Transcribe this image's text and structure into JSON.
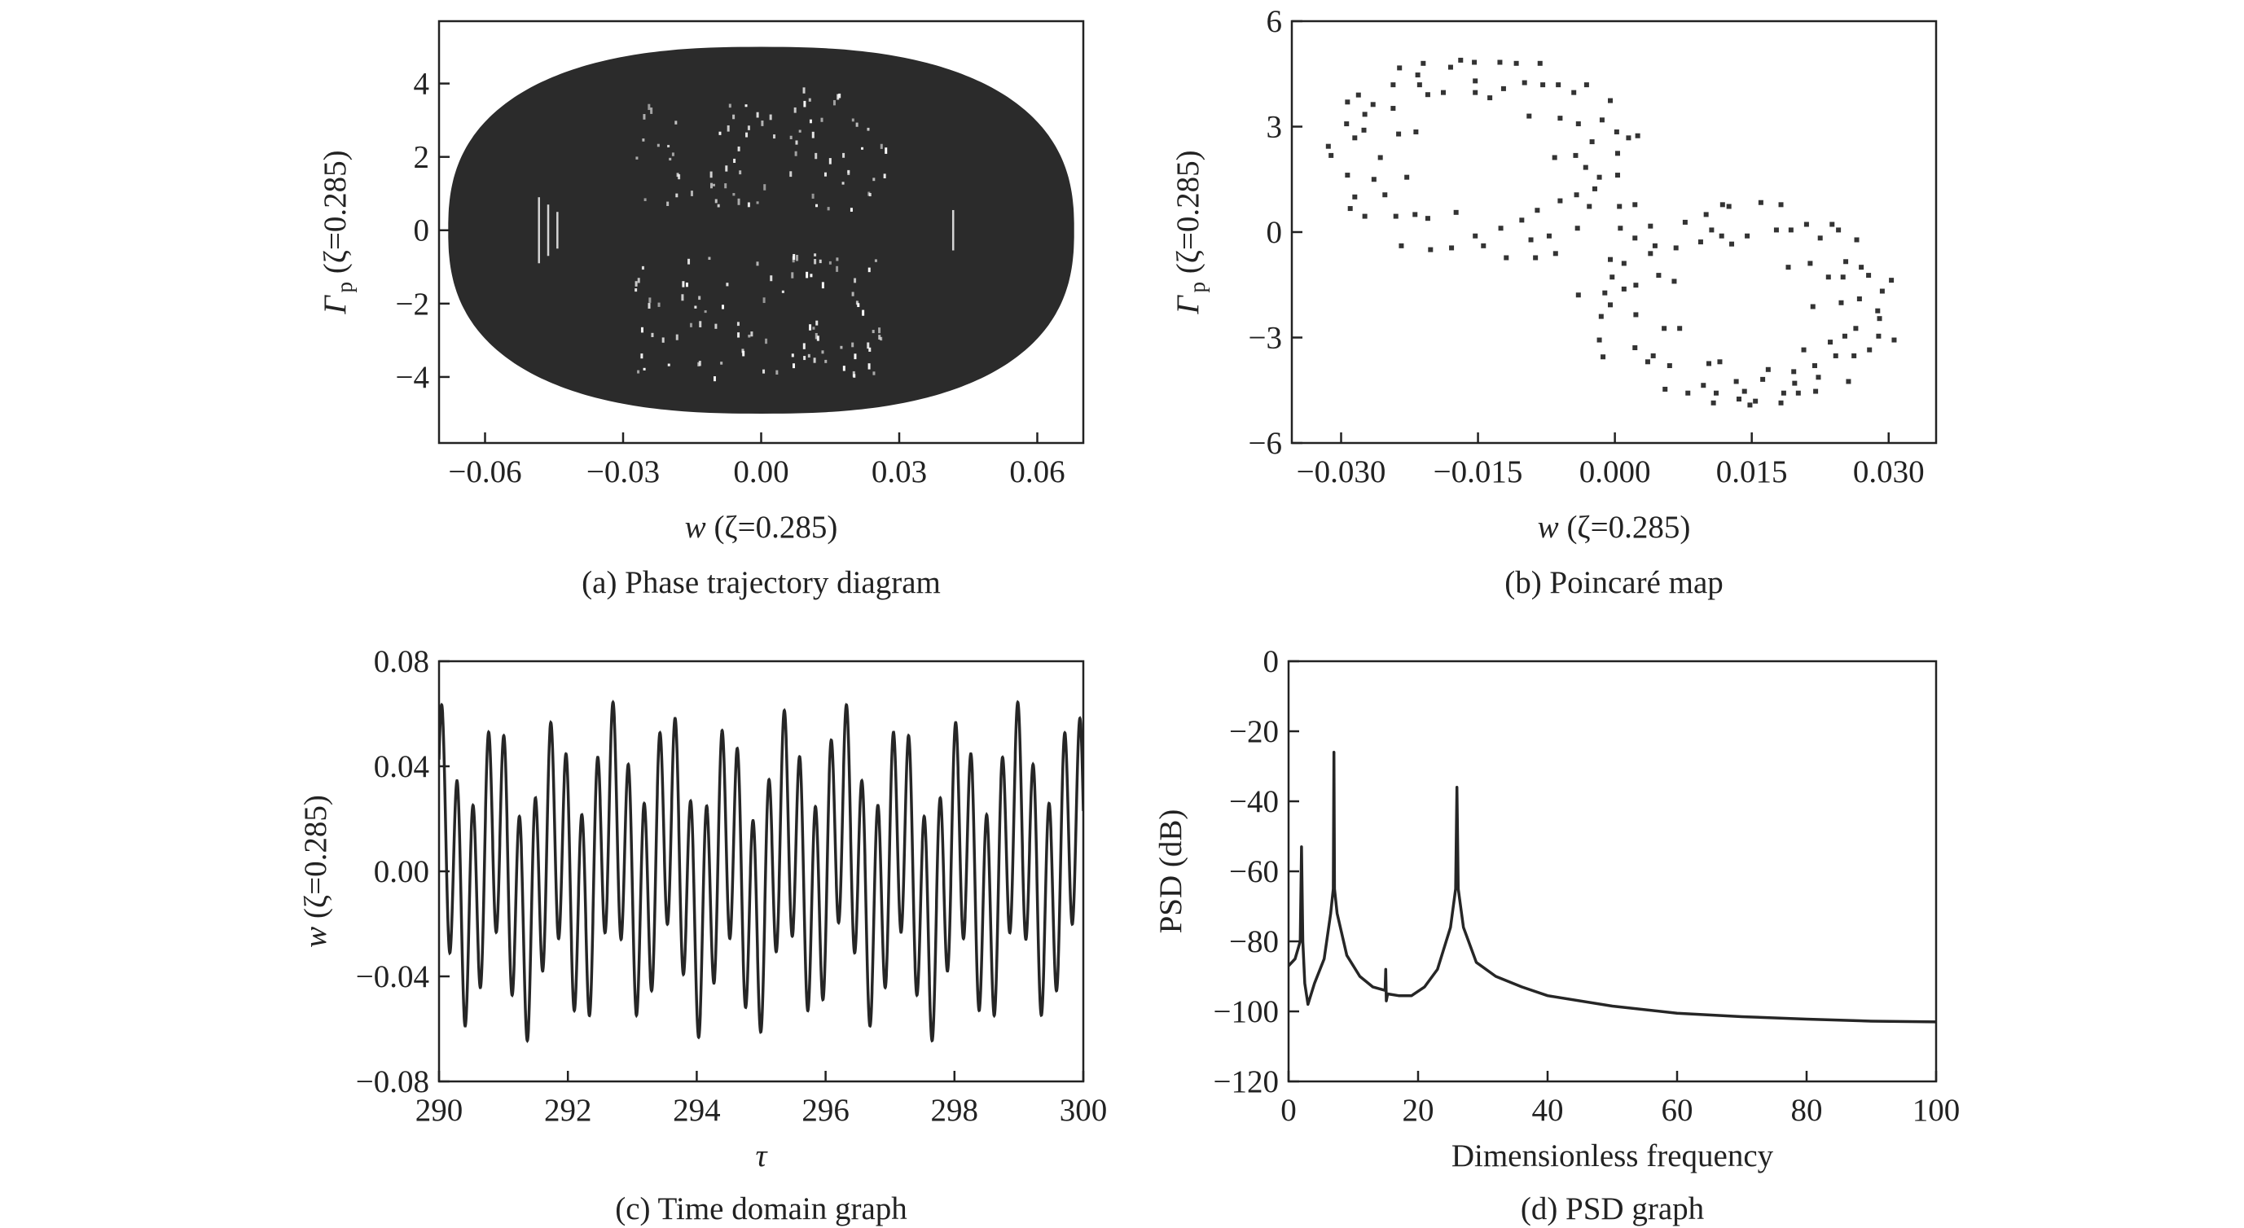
{
  "chart_data": [
    {
      "id": "a",
      "type": "area",
      "caption": "(a) Phase trajectory diagram",
      "xlabel": {
        "sym": "w",
        "rest": " (ζ=0.285)"
      },
      "ylabel": {
        "sym": "Γ",
        "sub": "p",
        "rest": " (ζ=0.285)"
      },
      "xlim": [
        -0.07,
        0.07
      ],
      "ylim": [
        -5.8,
        5.7
      ],
      "xticks": [
        -0.06,
        -0.03,
        0.0,
        0.03,
        0.06
      ],
      "xtick_labels": [
        "−0.06",
        "−0.03",
        "0.00",
        "0.03",
        "0.06"
      ],
      "yticks": [
        4,
        2,
        0,
        -2,
        -4
      ],
      "ytick_labels": [
        "4",
        "2",
        "0",
        "−2",
        "−4"
      ],
      "trajectory_envelope": {
        "w_amplitude": 0.068,
        "gamma_amplitude": 5.0
      },
      "fill_color": "#2b2b2b"
    },
    {
      "id": "b",
      "type": "scatter",
      "caption": "(b) Poincaré map",
      "xlabel": {
        "sym": "w",
        "rest": " (ζ=0.285)"
      },
      "ylabel": {
        "sym": "Γ",
        "sub": "p",
        "rest": " (ζ=0.285)"
      },
      "xlim": [
        -0.0354,
        0.0352
      ],
      "ylim": [
        -6,
        6
      ],
      "xticks": [
        -0.03,
        -0.015,
        0.0,
        0.015,
        0.03
      ],
      "xtick_labels": [
        "−0.030",
        "−0.015",
        "0.000",
        "0.015",
        "0.030"
      ],
      "yticks": [
        6,
        3,
        0,
        -3,
        -6
      ],
      "ytick_labels": [
        "6",
        "3",
        "0",
        "−3",
        "−6"
      ],
      "points": [
        [
          -0.0314,
          2.44
        ],
        [
          -0.0311,
          2.18
        ],
        [
          -0.0293,
          3.7
        ],
        [
          -0.0294,
          3.08
        ],
        [
          -0.0281,
          3.9
        ],
        [
          -0.0285,
          2.68
        ],
        [
          -0.0293,
          1.62
        ],
        [
          -0.029,
          0.67
        ],
        [
          -0.0285,
          1.0
        ],
        [
          -0.0274,
          3.35
        ],
        [
          -0.0275,
          2.9
        ],
        [
          -0.0265,
          3.63
        ],
        [
          -0.0264,
          1.5
        ],
        [
          -0.0274,
          0.45
        ],
        [
          -0.0257,
          2.12
        ],
        [
          -0.0252,
          1.06
        ],
        [
          -0.0243,
          4.19
        ],
        [
          -0.0243,
          3.52
        ],
        [
          -0.0236,
          4.67
        ],
        [
          -0.0237,
          2.79
        ],
        [
          -0.024,
          0.45
        ],
        [
          -0.0234,
          -0.39
        ],
        [
          -0.0228,
          1.56
        ],
        [
          -0.0218,
          2.85
        ],
        [
          -0.0216,
          4.47
        ],
        [
          -0.0214,
          4.19
        ],
        [
          -0.021,
          4.8
        ],
        [
          -0.0205,
          3.91
        ],
        [
          -0.0219,
          0.5
        ],
        [
          -0.0205,
          0.39
        ],
        [
          -0.0202,
          -0.5
        ],
        [
          -0.0188,
          3.97
        ],
        [
          -0.018,
          4.69
        ],
        [
          -0.0179,
          -0.45
        ],
        [
          -0.0174,
          0.56
        ],
        [
          -0.0169,
          4.89
        ],
        [
          -0.0154,
          4.83
        ],
        [
          -0.0153,
          3.97
        ],
        [
          -0.0153,
          4.3
        ],
        [
          -0.0144,
          -0.39
        ],
        [
          -0.0153,
          -0.11
        ],
        [
          -0.0137,
          3.82
        ],
        [
          -0.0126,
          4.83
        ],
        [
          -0.0125,
          0.11
        ],
        [
          -0.0122,
          4.08
        ],
        [
          -0.0119,
          -0.73
        ],
        [
          -0.0108,
          4.8
        ],
        [
          -0.0102,
          0.34
        ],
        [
          -0.0099,
          4.25
        ],
        [
          -0.0094,
          3.3
        ],
        [
          -0.0092,
          -0.22
        ],
        [
          -0.0087,
          -0.73
        ],
        [
          -0.0085,
          0.62
        ],
        [
          -0.0082,
          4.8
        ],
        [
          -0.0079,
          4.19
        ],
        [
          -0.0072,
          -0.11
        ],
        [
          -0.0066,
          2.12
        ],
        [
          -0.0065,
          -0.61
        ],
        [
          -0.0062,
          4.19
        ],
        [
          -0.006,
          3.24
        ],
        [
          -0.006,
          0.89
        ],
        [
          -0.0045,
          3.97
        ],
        [
          -0.0043,
          2.18
        ],
        [
          -0.0042,
          1.06
        ],
        [
          -0.0041,
          0.11
        ],
        [
          -0.004,
          3.08
        ],
        [
          -0.0032,
          1.84
        ],
        [
          -0.0031,
          4.19
        ],
        [
          -0.0028,
          0.73
        ],
        [
          -0.0025,
          2.57
        ],
        [
          -0.0022,
          1.23
        ],
        [
          -0.0017,
          1.56
        ],
        [
          -0.0014,
          3.19
        ],
        [
          -0.0005,
          3.74
        ],
        [
          0.0002,
          2.85
        ],
        [
          0.0003,
          2.24
        ],
        [
          0.0003,
          1.62
        ],
        [
          0.0005,
          0.73
        ],
        [
          0.0006,
          0.11
        ],
        [
          0.0015,
          2.68
        ],
        [
          0.0022,
          0.78
        ],
        [
          0.0025,
          2.74
        ],
        [
          -0.004,
          -1.79
        ],
        [
          -0.0005,
          -0.78
        ],
        [
          -0.0011,
          -1.73
        ],
        [
          -0.0005,
          -2.07
        ],
        [
          -0.0015,
          -2.4
        ],
        [
          -0.0017,
          -3.07
        ],
        [
          -0.0013,
          -3.55
        ],
        [
          -0.0003,
          -1.28
        ],
        [
          0.001,
          -1.62
        ],
        [
          0.001,
          -0.89
        ],
        [
          0.0022,
          -0.17
        ],
        [
          0.0023,
          -2.35
        ],
        [
          0.0022,
          -3.29
        ],
        [
          0.0023,
          -1.51
        ],
        [
          0.0039,
          0.17
        ],
        [
          0.0039,
          -0.61
        ],
        [
          0.0044,
          -0.39
        ],
        [
          0.0036,
          -3.69
        ],
        [
          0.0042,
          -3.52
        ],
        [
          0.0048,
          -1.23
        ],
        [
          0.0054,
          -2.74
        ],
        [
          0.0055,
          -4.47
        ],
        [
          0.006,
          -3.8
        ],
        [
          0.0065,
          -1.4
        ],
        [
          0.0067,
          -0.45
        ],
        [
          0.0071,
          -2.74
        ],
        [
          0.0077,
          0.28
        ],
        [
          0.008,
          -4.58
        ],
        [
          0.0094,
          -0.28
        ],
        [
          0.0097,
          -4.36
        ],
        [
          0.01,
          0.5
        ],
        [
          0.0103,
          -3.74
        ],
        [
          0.0106,
          0.06
        ],
        [
          0.0108,
          -4.86
        ],
        [
          0.0111,
          -4.58
        ],
        [
          0.0115,
          -3.69
        ],
        [
          0.0117,
          -0.11
        ],
        [
          0.0118,
          0.78
        ],
        [
          0.0125,
          0.73
        ],
        [
          0.0128,
          -0.34
        ],
        [
          0.0133,
          -4.25
        ],
        [
          0.0136,
          -4.75
        ],
        [
          0.0142,
          -4.53
        ],
        [
          0.0145,
          -0.11
        ],
        [
          0.0148,
          -4.92
        ],
        [
          0.0154,
          -4.81
        ],
        [
          0.016,
          0.84
        ],
        [
          0.0162,
          -4.19
        ],
        [
          0.0168,
          -3.91
        ],
        [
          0.0177,
          0.06
        ],
        [
          0.0182,
          0.78
        ],
        [
          0.0182,
          -4.86
        ],
        [
          0.0185,
          -4.58
        ],
        [
          0.019,
          -1.0
        ],
        [
          0.0193,
          0.06
        ],
        [
          0.0196,
          -3.97
        ],
        [
          0.0197,
          -4.3
        ],
        [
          0.0201,
          -4.58
        ],
        [
          0.021,
          0.22
        ],
        [
          0.0207,
          -3.35
        ],
        [
          0.0214,
          -0.89
        ],
        [
          0.0217,
          -2.12
        ],
        [
          0.0219,
          -3.8
        ],
        [
          0.022,
          -4.53
        ],
        [
          0.0223,
          -4.13
        ],
        [
          0.0225,
          -0.17
        ],
        [
          0.0234,
          -1.28
        ],
        [
          0.0236,
          -3.13
        ],
        [
          0.0238,
          0.22
        ],
        [
          0.0242,
          -3.52
        ],
        [
          0.0245,
          0.06
        ],
        [
          0.0248,
          -2.01
        ],
        [
          0.025,
          -1.28
        ],
        [
          0.0252,
          -2.96
        ],
        [
          0.0253,
          -0.84
        ],
        [
          0.0256,
          -4.25
        ],
        [
          0.0262,
          -3.52
        ],
        [
          0.0265,
          -0.22
        ],
        [
          0.0264,
          -2.74
        ],
        [
          0.0268,
          -1.9
        ],
        [
          0.027,
          -1.0
        ],
        [
          0.0278,
          -1.23
        ],
        [
          0.0279,
          -3.35
        ],
        [
          0.0288,
          -2.24
        ],
        [
          0.0289,
          -2.96
        ],
        [
          0.029,
          -2.46
        ],
        [
          0.0293,
          -1.68
        ],
        [
          0.0303,
          -1.37
        ],
        [
          0.0306,
          -3.07
        ]
      ]
    },
    {
      "id": "c",
      "type": "line",
      "caption": "(c) Time domain graph",
      "xlabel": {
        "sym": "τ",
        "rest": ""
      },
      "ylabel": {
        "sym": "w",
        "rest": " (ζ=0.285)"
      },
      "xlim": [
        290,
        300
      ],
      "ylim": [
        -0.08,
        0.08
      ],
      "xticks": [
        290,
        292,
        294,
        296,
        298,
        300
      ],
      "xtick_labels": [
        "290",
        "292",
        "294",
        "296",
        "298",
        "300"
      ],
      "yticks": [
        0.08,
        0.04,
        0.0,
        -0.04,
        -0.08
      ],
      "ytick_labels": [
        "0.08",
        "0.04",
        "0.00",
        "−0.04",
        "−0.08"
      ],
      "signal_components": [
        {
          "amplitude": 0.041,
          "omega": 26.0,
          "phase": 0.3
        },
        {
          "amplitude": 0.02,
          "omega": 7.0,
          "phase": 1.1
        },
        {
          "amplitude": 0.004,
          "omega": 2.0,
          "phase": 0.0
        }
      ]
    },
    {
      "id": "d",
      "type": "line",
      "caption": "(d) PSD graph",
      "xlabel": {
        "sym": "",
        "rest": "Dimensionless frequency"
      },
      "ylabel": {
        "sym": "",
        "rest": "PSD (dB)"
      },
      "xlim": [
        0,
        100
      ],
      "ylim": [
        -120,
        0
      ],
      "xticks": [
        0,
        20,
        40,
        60,
        80,
        100
      ],
      "xtick_labels": [
        "0",
        "20",
        "40",
        "60",
        "80",
        "100"
      ],
      "yticks": [
        0,
        -20,
        -40,
        -60,
        -80,
        -100,
        -120
      ],
      "ytick_labels": [
        "0",
        "−20",
        "−40",
        "−60",
        "−80",
        "−100",
        "−120"
      ],
      "x": [
        0,
        1,
        1.8,
        2,
        2.2,
        2.5,
        3,
        4,
        5.5,
        6.5,
        6.9,
        7,
        7.1,
        7.5,
        9,
        11,
        13,
        14.9,
        15,
        15.1,
        15.3,
        17,
        19,
        21,
        23,
        25,
        25.8,
        26,
        26.2,
        27,
        29,
        32,
        36,
        40,
        50,
        60,
        70,
        80,
        90,
        100
      ],
      "y": [
        -87,
        -85,
        -80,
        -53,
        -80,
        -92,
        -98,
        -92,
        -85,
        -72,
        -65,
        -26,
        -65,
        -72,
        -84,
        -90,
        -93,
        -94,
        -88,
        -97,
        -95,
        -95.5,
        -95.5,
        -93,
        -88,
        -76,
        -65,
        -36,
        -65,
        -76,
        -86,
        -90,
        -93,
        -95.5,
        -98.5,
        -100.5,
        -101.5,
        -102.2,
        -102.8,
        -103
      ]
    }
  ]
}
